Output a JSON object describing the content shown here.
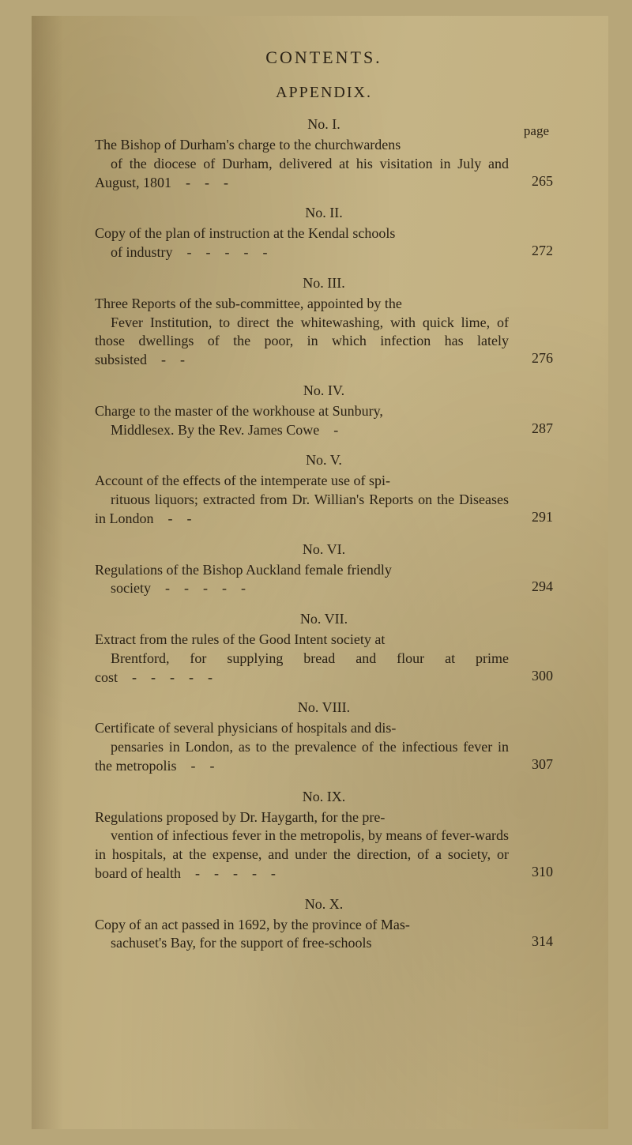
{
  "header": "CONTENTS.",
  "subheader": "APPENDIX.",
  "page_label": "page",
  "typography": {
    "body_font": "Georgia / Times New Roman (serif)",
    "body_size_pt": 13,
    "header_size_pt": 16,
    "line_height": 1.32,
    "text_color": "#2b2215",
    "page_bg_gradient": [
      "#b3a06e",
      "#bdab7c",
      "#c5b486",
      "#c2b081",
      "#b7a474"
    ],
    "outer_bg": "#b7a679"
  },
  "sections": [
    {
      "title": "No. I.",
      "first": "The Bishop of Durham's charge to the churchwardens",
      "cont": "of the diocese of Durham, delivered at his visitation in July and August, 1801 - - -",
      "page": "265"
    },
    {
      "title": "No. II.",
      "first": "Copy of the plan of instruction at the Kendal schools",
      "cont": "of industry - - - - -",
      "page": "272"
    },
    {
      "title": "No. III.",
      "first": "Three Reports of the sub-committee, appointed by the",
      "cont": "Fever Institution, to direct the whitewashing, with quick lime, of those dwellings of the poor, in which infection has lately subsisted - -",
      "page": "276"
    },
    {
      "title": "No. IV.",
      "first": "Charge to the master of the workhouse at Sunbury,",
      "cont": "Middlesex.  By the Rev. James Cowe -",
      "page": "287"
    },
    {
      "title": "No. V.",
      "first": "Account of the effects of the intemperate use of spi-",
      "cont": "rituous liquors; extracted from Dr. Willian's Reports on the Diseases in London - -",
      "page": "291"
    },
    {
      "title": "No. VI.",
      "first": "Regulations of the Bishop Auckland female friendly",
      "cont": "society - - - - -",
      "page": "294"
    },
    {
      "title": "No. VII.",
      "first": "Extract from the rules of the Good Intent society at",
      "cont": "Brentford, for supplying bread and flour at prime cost - - - - -",
      "page": "300"
    },
    {
      "title": "No. VIII.",
      "first": "Certificate of several physicians of hospitals and dis-",
      "cont": "pensaries in London, as to the prevalence of the infectious fever in the metropolis - -",
      "page": "307"
    },
    {
      "title": "No. IX.",
      "first": "Regulations proposed by Dr. Haygarth, for the pre-",
      "cont": "vention of infectious fever in the metropolis, by means of fever-wards in hospitals, at the expense, and under the direction, of a society, or board of health - - - - -",
      "page": "310"
    },
    {
      "title": "No. X.",
      "first": "Copy of an act passed in 1692, by the province of Mas-",
      "cont": "sachuset's Bay, for the support of free-schools",
      "page": "314"
    }
  ]
}
